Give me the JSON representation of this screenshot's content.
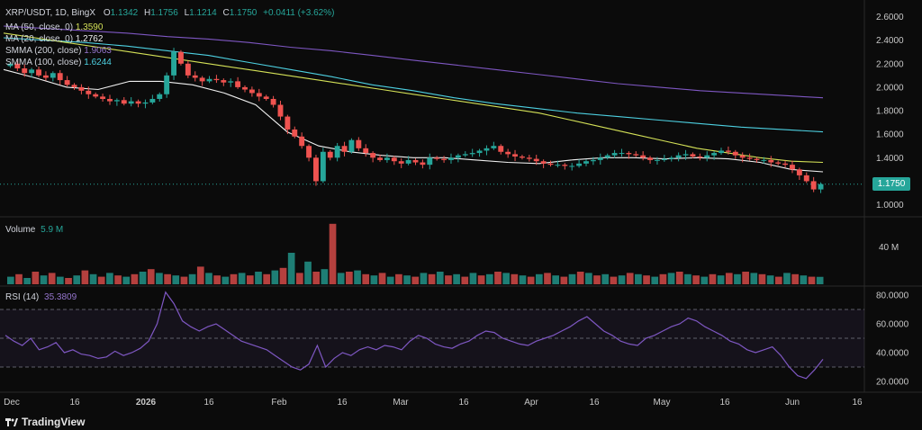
{
  "header": {
    "symbol": "XRP/USDT, 1D, BingX",
    "o_label": "O",
    "o_value": "1.1342",
    "h_label": "H",
    "h_value": "1.1756",
    "l_label": "L",
    "l_value": "1.1214",
    "c_label": "C",
    "c_value": "1.1750",
    "change": "+0.0411 (+3.62%)"
  },
  "indicators": [
    {
      "label": "MA (50, close, 0)",
      "value": "1.3590",
      "color": "#d4e157"
    },
    {
      "label": "MA (20, close, 0)",
      "value": "1.2762",
      "color": "#f0f0f0"
    },
    {
      "label": "SMMA (200, close)",
      "value": "1.9063",
      "color": "#7e57c2"
    },
    {
      "label": "SMMA (100, close)",
      "value": "1.6244",
      "color": "#4dd0e1"
    }
  ],
  "price_tag": "1.1750",
  "volume_pane": {
    "label": "Volume",
    "value": "5.9 M",
    "axis_label": "40 M"
  },
  "rsi_pane": {
    "label": "RSI (14)",
    "value": "35.3809"
  },
  "price_axis": [
    "2.6000",
    "2.4000",
    "2.2000",
    "2.0000",
    "1.8000",
    "1.6000",
    "1.4000",
    "1.2000",
    "1.0000"
  ],
  "rsi_axis": [
    "80.0000",
    "60.0000",
    "40.0000",
    "20.0000"
  ],
  "time_axis": [
    "Dec",
    "16",
    "2026",
    "16",
    "Feb",
    "16",
    "Mar",
    "16",
    "Apr",
    "16",
    "May",
    "16",
    "Jun",
    "16"
  ],
  "brand": "TradingView",
  "colors": {
    "up": "#26a69a",
    "down": "#ef5350",
    "rsi": "#7e57c2",
    "background": "#0b0b0b"
  },
  "chart_data": {
    "type": "candlestick",
    "interval": "1D",
    "price_range": [
      0.92,
      2.65
    ],
    "rsi_range": [
      15,
      85
    ],
    "rsi_bands": [
      70,
      50,
      30
    ],
    "dates_range": [
      "2025-11-27",
      "2026-06-07"
    ],
    "ohlc_close_series": [
      2.2,
      2.16,
      2.12,
      2.15,
      2.1,
      2.08,
      2.12,
      2.06,
      2.02,
      2.0,
      1.97,
      1.94,
      1.92,
      1.9,
      1.88,
      1.89,
      1.86,
      1.88,
      1.86,
      1.87,
      1.9,
      1.94,
      2.1,
      2.3,
      2.2,
      2.1,
      2.08,
      2.05,
      2.07,
      2.06,
      2.04,
      2.05,
      2.0,
      1.98,
      1.95,
      1.92,
      1.9,
      1.85,
      1.75,
      1.64,
      1.58,
      1.5,
      1.4,
      1.2,
      1.45,
      1.4,
      1.5,
      1.45,
      1.55,
      1.48,
      1.44,
      1.4,
      1.38,
      1.4,
      1.37,
      1.35,
      1.38,
      1.36,
      1.34,
      1.4,
      1.39,
      1.38,
      1.4,
      1.42,
      1.43,
      1.44,
      1.46,
      1.48,
      1.5,
      1.45,
      1.43,
      1.41,
      1.4,
      1.39,
      1.37,
      1.35,
      1.34,
      1.34,
      1.33,
      1.33,
      1.35,
      1.37,
      1.38,
      1.4,
      1.42,
      1.44,
      1.44,
      1.43,
      1.42,
      1.4,
      1.38,
      1.38,
      1.39,
      1.4,
      1.42,
      1.43,
      1.41,
      1.4,
      1.42,
      1.44,
      1.46,
      1.45,
      1.42,
      1.4,
      1.39,
      1.38,
      1.38,
      1.36,
      1.35,
      1.34,
      1.3,
      1.25,
      1.2,
      1.13,
      1.175
    ],
    "rsi_series": [
      52,
      48,
      45,
      50,
      42,
      44,
      47,
      40,
      42,
      39,
      38,
      36,
      37,
      41,
      38,
      40,
      43,
      48,
      60,
      82,
      74,
      62,
      58,
      55,
      58,
      60,
      56,
      52,
      48,
      46,
      44,
      42,
      38,
      34,
      30,
      28,
      32,
      45,
      30,
      36,
      40,
      38,
      42,
      44,
      42,
      45,
      44,
      42,
      48,
      52,
      50,
      46,
      44,
      43,
      46,
      48,
      52,
      55,
      54,
      50,
      48,
      46,
      45,
      48,
      50,
      52,
      55,
      58,
      62,
      65,
      60,
      55,
      52,
      48,
      46,
      45,
      50,
      52,
      55,
      58,
      60,
      64,
      62,
      58,
      55,
      52,
      48,
      46,
      42,
      40,
      42,
      44,
      38,
      30,
      24,
      22,
      28,
      35.38
    ],
    "volume_series": [
      6,
      8,
      5,
      10,
      7,
      9,
      6,
      5,
      7,
      11,
      8,
      6,
      9,
      7,
      6,
      8,
      10,
      12,
      9,
      8,
      7,
      6,
      8,
      14,
      9,
      7,
      6,
      8,
      9,
      7,
      10,
      8,
      11,
      13,
      25,
      9,
      18,
      10,
      12,
      48,
      9,
      10,
      11,
      8,
      7,
      9,
      6,
      8,
      7,
      6,
      9,
      8,
      10,
      7,
      8,
      6,
      9,
      7,
      8,
      10,
      9,
      8,
      7,
      6,
      8,
      9,
      7,
      6,
      8,
      10,
      9,
      7,
      8,
      6,
      7,
      9,
      8,
      7,
      6,
      8,
      9,
      10,
      8,
      7,
      6,
      8,
      7,
      9,
      8,
      10,
      9,
      8,
      7,
      6,
      9,
      8,
      7,
      6,
      5.9
    ],
    "ma50_values": [
      2.46,
      2.42,
      2.38,
      2.34,
      2.3,
      2.26,
      2.22,
      2.18,
      2.14,
      2.1,
      2.06,
      2.02,
      1.98,
      1.94,
      1.9,
      1.86,
      1.82,
      1.78,
      1.72,
      1.66,
      1.6,
      1.54,
      1.48,
      1.44,
      1.4,
      1.37,
      1.36
    ],
    "ma20_values": [
      2.15,
      2.08,
      2.0,
      1.98,
      2.05,
      2.05,
      2.02,
      1.95,
      1.85,
      1.62,
      1.5,
      1.45,
      1.42,
      1.4,
      1.4,
      1.38,
      1.36,
      1.35,
      1.38,
      1.4,
      1.4,
      1.39,
      1.4,
      1.39,
      1.36,
      1.3,
      1.28
    ],
    "smma200_values": [
      2.52,
      2.5,
      2.48,
      2.46,
      2.43,
      2.41,
      2.38,
      2.34,
      2.31,
      2.27,
      2.23,
      2.19,
      2.15,
      2.11,
      2.07,
      2.03,
      2.0,
      1.97,
      1.95,
      1.93,
      1.91
    ],
    "smma100_values": [
      2.42,
      2.4,
      2.38,
      2.35,
      2.31,
      2.27,
      2.21,
      2.15,
      2.09,
      2.02,
      1.97,
      1.91,
      1.86,
      1.82,
      1.78,
      1.75,
      1.72,
      1.69,
      1.66,
      1.64,
      1.62
    ]
  }
}
